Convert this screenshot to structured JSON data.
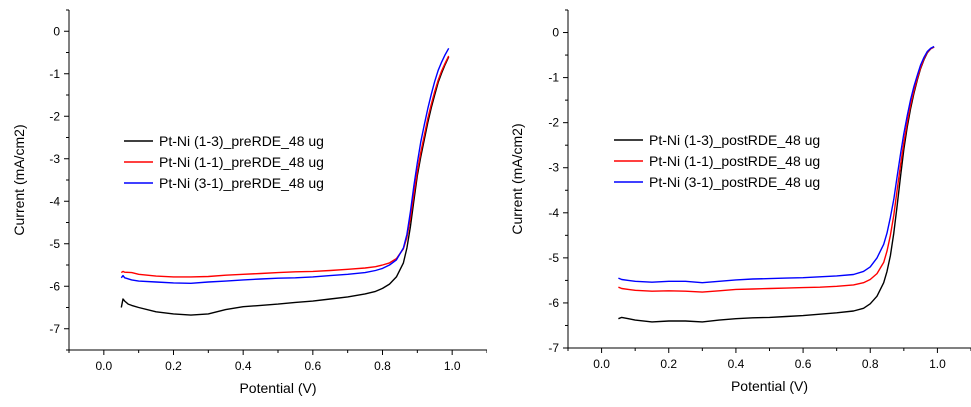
{
  "chart_data": [
    {
      "type": "line",
      "xlabel": "Potential (V)",
      "ylabel": "Current (mA/cm2)",
      "xlim": [
        -0.1,
        1.1
      ],
      "ylim": [
        -7.5,
        0.5
      ],
      "xticks": [
        "0.0",
        "0.2",
        "0.4",
        "0.6",
        "0.8",
        "1.0"
      ],
      "xtick_values": [
        0.0,
        0.2,
        0.4,
        0.6,
        0.8,
        1.0
      ],
      "yticks": [
        "0",
        "-1",
        "-2",
        "-3",
        "-4",
        "-5",
        "-6",
        "-7"
      ],
      "ytick_values": [
        0,
        -1,
        -2,
        -3,
        -4,
        -5,
        -6,
        -7
      ],
      "grid": false,
      "legend_position": "center-left",
      "series": [
        {
          "name": "Pt-Ni (1-3)_preRDE_48 ug",
          "color": "#000000",
          "x": [
            0.05,
            0.055,
            0.06,
            0.07,
            0.08,
            0.1,
            0.15,
            0.2,
            0.25,
            0.3,
            0.35,
            0.4,
            0.45,
            0.5,
            0.55,
            0.6,
            0.65,
            0.7,
            0.75,
            0.78,
            0.8,
            0.82,
            0.84,
            0.86,
            0.87,
            0.88,
            0.89,
            0.9,
            0.91,
            0.92,
            0.93,
            0.94,
            0.95,
            0.96,
            0.97,
            0.98,
            0.99
          ],
          "y": [
            -6.5,
            -6.3,
            -6.35,
            -6.42,
            -6.45,
            -6.5,
            -6.6,
            -6.65,
            -6.68,
            -6.65,
            -6.55,
            -6.48,
            -6.45,
            -6.42,
            -6.38,
            -6.35,
            -6.3,
            -6.25,
            -6.18,
            -6.12,
            -6.05,
            -5.95,
            -5.78,
            -5.45,
            -5.1,
            -4.6,
            -4.0,
            -3.4,
            -2.95,
            -2.55,
            -2.15,
            -1.8,
            -1.5,
            -1.2,
            -0.98,
            -0.78,
            -0.6
          ]
        },
        {
          "name": "Pt-Ni (1-1)_preRDE_48 ug",
          "color": "#ff0000",
          "x": [
            0.05,
            0.055,
            0.06,
            0.08,
            0.1,
            0.15,
            0.2,
            0.25,
            0.3,
            0.35,
            0.4,
            0.45,
            0.5,
            0.55,
            0.6,
            0.65,
            0.7,
            0.75,
            0.78,
            0.8,
            0.82,
            0.84,
            0.86,
            0.87,
            0.88,
            0.89,
            0.9,
            0.91,
            0.92,
            0.93,
            0.94,
            0.95,
            0.96,
            0.97,
            0.98,
            0.99
          ],
          "y": [
            -5.68,
            -5.65,
            -5.67,
            -5.68,
            -5.72,
            -5.76,
            -5.78,
            -5.78,
            -5.77,
            -5.74,
            -5.72,
            -5.7,
            -5.68,
            -5.66,
            -5.65,
            -5.63,
            -5.6,
            -5.57,
            -5.54,
            -5.5,
            -5.45,
            -5.35,
            -5.12,
            -4.85,
            -4.4,
            -3.85,
            -3.3,
            -2.85,
            -2.45,
            -2.05,
            -1.72,
            -1.42,
            -1.15,
            -0.93,
            -0.75,
            -0.58
          ]
        },
        {
          "name": "Pt-Ni (3-1)_preRDE_48 ug",
          "color": "#0000ff",
          "x": [
            0.05,
            0.055,
            0.06,
            0.08,
            0.1,
            0.15,
            0.2,
            0.25,
            0.3,
            0.35,
            0.4,
            0.45,
            0.5,
            0.55,
            0.6,
            0.65,
            0.7,
            0.75,
            0.78,
            0.8,
            0.82,
            0.84,
            0.86,
            0.87,
            0.88,
            0.89,
            0.9,
            0.91,
            0.92,
            0.93,
            0.94,
            0.95,
            0.96,
            0.97,
            0.98,
            0.99
          ],
          "y": [
            -5.8,
            -5.75,
            -5.8,
            -5.85,
            -5.88,
            -5.9,
            -5.92,
            -5.93,
            -5.9,
            -5.88,
            -5.85,
            -5.83,
            -5.81,
            -5.8,
            -5.78,
            -5.75,
            -5.72,
            -5.68,
            -5.63,
            -5.58,
            -5.5,
            -5.38,
            -5.1,
            -4.78,
            -4.25,
            -3.65,
            -3.1,
            -2.6,
            -2.2,
            -1.82,
            -1.48,
            -1.18,
            -0.92,
            -0.72,
            -0.55,
            -0.4
          ]
        }
      ]
    },
    {
      "type": "line",
      "xlabel": "Potential (V)",
      "ylabel": "Current (mA/cm2)",
      "xlim": [
        -0.1,
        1.1
      ],
      "ylim": [
        -7.0,
        0.5
      ],
      "xticks": [
        "0.0",
        "0.2",
        "0.4",
        "0.6",
        "0.8",
        "1.0"
      ],
      "xtick_values": [
        0.0,
        0.2,
        0.4,
        0.6,
        0.8,
        1.0
      ],
      "yticks": [
        "0",
        "-1",
        "-2",
        "-3",
        "-4",
        "-5",
        "-6",
        "-7"
      ],
      "ytick_values": [
        0,
        -1,
        -2,
        -3,
        -4,
        -5,
        -6,
        -7
      ],
      "grid": false,
      "legend_position": "center-left",
      "series": [
        {
          "name": "Pt-Ni (1-3)_postRDE_48 ug",
          "color": "#000000",
          "x": [
            0.05,
            0.06,
            0.08,
            0.1,
            0.15,
            0.2,
            0.25,
            0.3,
            0.35,
            0.4,
            0.45,
            0.5,
            0.55,
            0.6,
            0.65,
            0.7,
            0.75,
            0.78,
            0.8,
            0.82,
            0.84,
            0.85,
            0.86,
            0.87,
            0.88,
            0.89,
            0.9,
            0.91,
            0.92,
            0.93,
            0.94,
            0.95,
            0.96,
            0.97,
            0.98,
            0.99
          ],
          "y": [
            -6.35,
            -6.32,
            -6.35,
            -6.38,
            -6.42,
            -6.4,
            -6.4,
            -6.42,
            -6.38,
            -6.35,
            -6.33,
            -6.32,
            -6.3,
            -6.28,
            -6.25,
            -6.22,
            -6.18,
            -6.12,
            -6.02,
            -5.85,
            -5.55,
            -5.3,
            -4.95,
            -4.45,
            -3.85,
            -3.2,
            -2.6,
            -2.1,
            -1.7,
            -1.35,
            -1.05,
            -0.8,
            -0.6,
            -0.45,
            -0.36,
            -0.32
          ]
        },
        {
          "name": "Pt-Ni (1-1)_postRDE_48 ug",
          "color": "#ff0000",
          "x": [
            0.05,
            0.06,
            0.08,
            0.1,
            0.15,
            0.2,
            0.25,
            0.3,
            0.35,
            0.4,
            0.45,
            0.5,
            0.55,
            0.6,
            0.65,
            0.7,
            0.75,
            0.78,
            0.8,
            0.82,
            0.84,
            0.85,
            0.86,
            0.87,
            0.88,
            0.89,
            0.9,
            0.91,
            0.92,
            0.93,
            0.94,
            0.95,
            0.96,
            0.97,
            0.98,
            0.99
          ],
          "y": [
            -5.65,
            -5.68,
            -5.7,
            -5.72,
            -5.74,
            -5.73,
            -5.74,
            -5.76,
            -5.73,
            -5.7,
            -5.69,
            -5.68,
            -5.67,
            -5.66,
            -5.65,
            -5.63,
            -5.6,
            -5.55,
            -5.48,
            -5.35,
            -5.1,
            -4.85,
            -4.5,
            -4.05,
            -3.5,
            -2.95,
            -2.45,
            -2.0,
            -1.62,
            -1.3,
            -1.02,
            -0.78,
            -0.58,
            -0.44,
            -0.36,
            -0.32
          ]
        },
        {
          "name": "Pt-Ni (3-1)_postRDE_48 ug",
          "color": "#0000ff",
          "x": [
            0.05,
            0.06,
            0.08,
            0.1,
            0.15,
            0.2,
            0.25,
            0.3,
            0.35,
            0.4,
            0.45,
            0.5,
            0.55,
            0.6,
            0.65,
            0.7,
            0.75,
            0.78,
            0.8,
            0.82,
            0.84,
            0.85,
            0.86,
            0.87,
            0.88,
            0.89,
            0.9,
            0.91,
            0.92,
            0.93,
            0.94,
            0.95,
            0.96,
            0.97,
            0.98,
            0.99
          ],
          "y": [
            -5.45,
            -5.48,
            -5.5,
            -5.52,
            -5.54,
            -5.52,
            -5.52,
            -5.55,
            -5.52,
            -5.49,
            -5.47,
            -5.46,
            -5.45,
            -5.44,
            -5.42,
            -5.4,
            -5.37,
            -5.3,
            -5.2,
            -5.0,
            -4.7,
            -4.45,
            -4.1,
            -3.7,
            -3.2,
            -2.7,
            -2.25,
            -1.85,
            -1.5,
            -1.2,
            -0.95,
            -0.72,
            -0.55,
            -0.42,
            -0.35,
            -0.31
          ]
        }
      ]
    }
  ]
}
